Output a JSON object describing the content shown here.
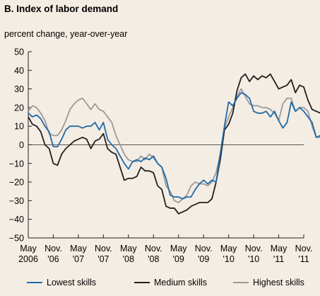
{
  "chart_data": {
    "type": "line",
    "title": "B. Index of labor demand",
    "subtitle": "percent change, year-over-year",
    "xlabel": "",
    "ylabel": "",
    "ylim": [
      -50,
      50
    ],
    "yticks": [
      -50,
      -40,
      -30,
      -20,
      -10,
      0,
      10,
      20,
      30,
      40,
      50
    ],
    "x_start": "2006-05",
    "x_end": "2011-11",
    "xticks": [
      {
        "month": "2006-05",
        "line1": "May",
        "line2": "2006"
      },
      {
        "month": "2006-11",
        "line1": "Nov.",
        "line2": "'06"
      },
      {
        "month": "2007-05",
        "line1": "May",
        "line2": "'07"
      },
      {
        "month": "2007-11",
        "line1": "Nov.",
        "line2": "'07"
      },
      {
        "month": "2008-05",
        "line1": "May",
        "line2": "'08"
      },
      {
        "month": "2008-11",
        "line1": "Nov.",
        "line2": "'08"
      },
      {
        "month": "2009-05",
        "line1": "May",
        "line2": "'09"
      },
      {
        "month": "2009-11",
        "line1": "Nov.",
        "line2": "'09"
      },
      {
        "month": "2010-05",
        "line1": "May",
        "line2": "'10"
      },
      {
        "month": "2010-11",
        "line1": "Nov.",
        "line2": "'10"
      },
      {
        "month": "2011-05",
        "line1": "May",
        "line2": "'11"
      },
      {
        "month": "2011-11",
        "line1": "Nov.",
        "line2": "'11"
      }
    ],
    "legend_position": "bottom",
    "grid": false,
    "series": [
      {
        "name": "Lowest skills",
        "color": "#1f6aa8",
        "values": [
          17,
          15,
          16,
          14,
          10,
          7,
          -1,
          -1,
          3,
          8,
          10,
          10,
          10,
          9,
          10,
          10,
          12,
          8,
          12,
          3,
          0,
          -2,
          -6,
          -10,
          -13,
          -9,
          -8,
          -9,
          -7,
          -8,
          -6,
          -10,
          -12,
          -18,
          -27,
          -28,
          -28,
          -29,
          -28,
          -28,
          -24,
          -21,
          -19,
          -21,
          -19,
          -20,
          -5,
          10,
          23,
          21,
          25,
          28,
          27,
          25,
          18,
          17,
          17,
          18,
          15,
          18,
          13,
          9,
          12,
          23,
          18,
          20,
          18,
          15,
          12,
          4,
          5,
          8,
          4
        ]
      },
      {
        "name": "Medium skills",
        "color": "#231f20",
        "values": [
          15,
          11,
          10,
          7,
          0,
          -2,
          -10,
          -11,
          -5,
          -2,
          0,
          2,
          3,
          4,
          3,
          -2,
          2,
          3,
          6,
          -2,
          -4,
          -5,
          -12,
          -19,
          -18,
          -18,
          -17,
          -12,
          -14,
          -14,
          -15,
          -22,
          -24,
          -33,
          -34,
          -34,
          -37,
          -36,
          -35,
          -33,
          -32,
          -31,
          -31,
          -31,
          -29,
          -20,
          -8,
          8,
          11,
          17,
          29,
          36,
          38,
          34,
          37,
          35,
          37,
          36,
          38,
          34,
          30,
          31,
          32,
          35,
          28,
          32,
          31,
          24,
          19,
          18,
          17,
          17,
          13
        ]
      },
      {
        "name": "Highest skills",
        "color": "#9a9a9a",
        "values": [
          18,
          21,
          20,
          17,
          13,
          6,
          5,
          5,
          8,
          13,
          19,
          22,
          24,
          25,
          22,
          19,
          22,
          19,
          18,
          15,
          12,
          5,
          0,
          -5,
          -8,
          -9,
          -9,
          -6,
          -8,
          -5,
          -7,
          -10,
          -12,
          -22,
          -25,
          -30,
          -31,
          -29,
          -27,
          -22,
          -20,
          -21,
          -21,
          -22,
          -20,
          -15,
          -5,
          9,
          15,
          20,
          26,
          30,
          26,
          22,
          21,
          21,
          20,
          20,
          19,
          17,
          13,
          22,
          25,
          25,
          18,
          20,
          20,
          18,
          10,
          4,
          4,
          0,
          0
        ]
      }
    ]
  }
}
